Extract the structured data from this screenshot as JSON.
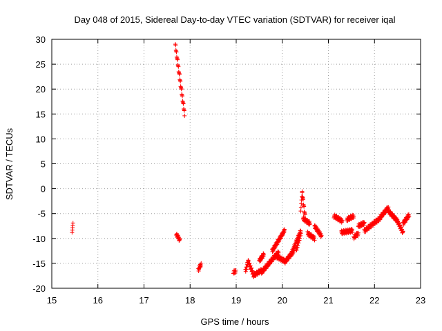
{
  "chart_data": {
    "type": "scatter",
    "title": "Day 048 of 2015, Sidereal Day-to-day VTEC variation (SDTVAR) for receiver iqal",
    "xlabel": "GPS time / hours",
    "ylabel": "SDTVAR / TECUs",
    "xlim": [
      15,
      23
    ],
    "ylim": [
      -20,
      30
    ],
    "xticks": [
      "15",
      "16",
      "17",
      "18",
      "19",
      "20",
      "21",
      "22",
      "23"
    ],
    "yticks": [
      "-20",
      "-15",
      "-10",
      "-5",
      "0",
      "5",
      "10",
      "15",
      "20",
      "25",
      "30"
    ],
    "grid": true,
    "marker": "+",
    "colors": {
      "series": "#ff0000",
      "grid": "#a0a0a0",
      "axes": "#000000"
    },
    "series": [
      {
        "name": "SDTVAR",
        "segments": [
          {
            "x": [
              15.44,
              15.46
            ],
            "y": [
              -8.8,
              -6.9
            ]
          },
          {
            "x": [
              17.68,
              17.88
            ],
            "y": [
              28.9,
              15.0
            ]
          },
          {
            "x": [
              17.7,
              17.78
            ],
            "y": [
              -9.1,
              -10.4
            ]
          },
          {
            "x": [
              18.18,
              18.24
            ],
            "y": [
              -16.3,
              -15.1
            ]
          },
          {
            "x": [
              18.94,
              18.99
            ],
            "y": [
              -16.9,
              -16.5
            ]
          },
          {
            "x": [
              19.2,
              19.26
            ],
            "y": [
              -16.6,
              -14.6
            ]
          },
          {
            "x": [
              19.26,
              19.38
            ],
            "y": [
              -14.6,
              -17.4
            ]
          },
          {
            "x": [
              19.38,
              19.55
            ],
            "y": [
              -17.4,
              -16.4
            ]
          },
          {
            "x": [
              19.5,
              19.6
            ],
            "y": [
              -14.5,
              -13.2
            ]
          },
          {
            "x": [
              19.55,
              19.8
            ],
            "y": [
              -16.8,
              -14.0
            ]
          },
          {
            "x": [
              19.8,
              19.92
            ],
            "y": [
              -14.0,
              -12.8
            ]
          },
          {
            "x": [
              19.85,
              20.05
            ],
            "y": [
              -13.5,
              -14.5
            ]
          },
          {
            "x": [
              19.78,
              20.05
            ],
            "y": [
              -12.5,
              -8.4
            ]
          },
          {
            "x": [
              20.05,
              20.25
            ],
            "y": [
              -14.8,
              -12.5
            ]
          },
          {
            "x": [
              20.2,
              20.4
            ],
            "y": [
              -13.0,
              -8.5
            ]
          },
          {
            "x": [
              20.3,
              20.4
            ],
            "y": [
              -12.5,
              -9.0
            ]
          },
          {
            "x": [
              20.4,
              20.43
            ],
            "y": [
              -4.5,
              -0.8
            ]
          },
          {
            "x": [
              20.43,
              20.5
            ],
            "y": [
              -0.8,
              -6.0
            ]
          },
          {
            "x": [
              20.45,
              20.6
            ],
            "y": [
              -6.0,
              -7.0
            ]
          },
          {
            "x": [
              20.55,
              20.7
            ],
            "y": [
              -9.0,
              -10.0
            ]
          },
          {
            "x": [
              20.7,
              20.85
            ],
            "y": [
              -7.5,
              -9.5
            ]
          },
          {
            "x": [
              21.12,
              21.3
            ],
            "y": [
              -5.5,
              -6.5
            ]
          },
          {
            "x": [
              21.28,
              21.52
            ],
            "y": [
              -8.8,
              -8.4
            ]
          },
          {
            "x": [
              21.4,
              21.55
            ],
            "y": [
              -6.2,
              -5.5
            ]
          },
          {
            "x": [
              21.55,
              21.65
            ],
            "y": [
              -9.8,
              -9.0
            ]
          },
          {
            "x": [
              21.65,
              21.78
            ],
            "y": [
              -7.5,
              -6.9
            ]
          },
          {
            "x": [
              21.78,
              22.0
            ],
            "y": [
              -8.5,
              -6.8
            ]
          },
          {
            "x": [
              22.0,
              22.12
            ],
            "y": [
              -6.8,
              -6.0
            ]
          },
          {
            "x": [
              22.12,
              22.3
            ],
            "y": [
              -5.8,
              -3.8
            ]
          },
          {
            "x": [
              22.3,
              22.5
            ],
            "y": [
              -4.5,
              -6.5
            ]
          },
          {
            "x": [
              22.5,
              22.62
            ],
            "y": [
              -6.5,
              -8.9
            ]
          },
          {
            "x": [
              22.62,
              22.75
            ],
            "y": [
              -7.0,
              -5.3
            ]
          }
        ]
      }
    ]
  }
}
